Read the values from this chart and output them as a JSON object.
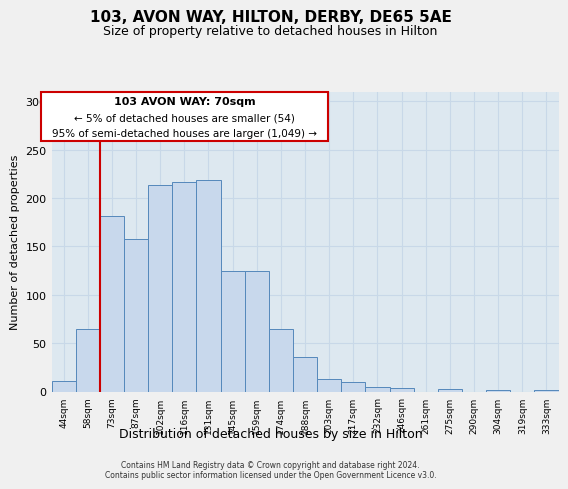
{
  "title": "103, AVON WAY, HILTON, DERBY, DE65 5AE",
  "subtitle": "Size of property relative to detached houses in Hilton",
  "xlabel": "Distribution of detached houses by size in Hilton",
  "ylabel": "Number of detached properties",
  "bar_labels": [
    "44sqm",
    "58sqm",
    "73sqm",
    "87sqm",
    "102sqm",
    "116sqm",
    "131sqm",
    "145sqm",
    "159sqm",
    "174sqm",
    "188sqm",
    "203sqm",
    "217sqm",
    "232sqm",
    "246sqm",
    "261sqm",
    "275sqm",
    "290sqm",
    "304sqm",
    "319sqm",
    "333sqm"
  ],
  "bar_values": [
    11,
    65,
    181,
    158,
    213,
    216,
    219,
    125,
    125,
    65,
    36,
    13,
    10,
    5,
    4,
    0,
    3,
    0,
    2,
    0,
    2
  ],
  "bar_color": "#c8d8ec",
  "bar_edge_color": "#5588bb",
  "annotation_text_line1": "103 AVON WAY: 70sqm",
  "annotation_text_line2": "← 5% of detached houses are smaller (54)",
  "annotation_text_line3": "95% of semi-detached houses are larger (1,049) →",
  "annotation_box_color": "#ffffff",
  "annotation_box_edge_color": "#cc0000",
  "vline_color": "#cc0000",
  "vline_x_index": 2,
  "ylim": [
    0,
    310
  ],
  "yticks": [
    0,
    50,
    100,
    150,
    200,
    250,
    300
  ],
  "grid_color": "#c8d8e8",
  "background_color": "#dde8f0",
  "fig_background": "#f0f0f0",
  "footer_line1": "Contains HM Land Registry data © Crown copyright and database right 2024.",
  "footer_line2": "Contains public sector information licensed under the Open Government Licence v3.0."
}
